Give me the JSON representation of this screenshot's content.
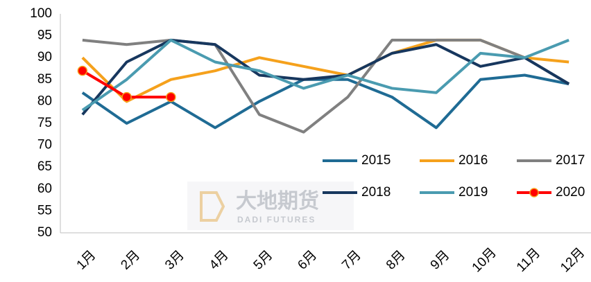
{
  "chart_data": {
    "type": "line",
    "categories": [
      "1月",
      "2月",
      "3月",
      "4月",
      "5月",
      "6月",
      "7月",
      "8月",
      "9月",
      "10月",
      "11月",
      "12月"
    ],
    "series": [
      {
        "name": "2015",
        "color": "#1f6b94",
        "values": [
          82,
          75,
          80,
          74,
          80,
          85,
          85,
          81,
          74,
          85,
          86,
          84
        ]
      },
      {
        "name": "2016",
        "color": "#f5a11c",
        "values": [
          90,
          80,
          85,
          87,
          90,
          88,
          86,
          91,
          94,
          94,
          90,
          89
        ]
      },
      {
        "name": "2017",
        "color": "#808080",
        "values": [
          94,
          93,
          94,
          93,
          77,
          73,
          81,
          94,
          94,
          94,
          90,
          84
        ]
      },
      {
        "name": "2018",
        "color": "#17375e",
        "values": [
          77,
          89,
          94,
          93,
          86,
          85,
          86,
          91,
          93,
          88,
          90,
          84
        ]
      },
      {
        "name": "2019",
        "color": "#4a9bb0",
        "values": [
          78,
          85,
          94,
          89,
          87,
          83,
          86,
          83,
          82,
          91,
          90,
          94
        ]
      },
      {
        "name": "2020",
        "color": "#ff0000",
        "marker": true,
        "values": [
          87,
          81,
          81,
          null,
          null,
          null,
          null,
          null,
          null,
          null,
          null,
          null
        ]
      }
    ],
    "ylim": [
      50,
      100
    ],
    "yticks": [
      50,
      55,
      60,
      65,
      70,
      75,
      80,
      85,
      90,
      95,
      100
    ],
    "watermark": {
      "title": "大地期货",
      "subtitle": "DADI FUTURES"
    }
  }
}
